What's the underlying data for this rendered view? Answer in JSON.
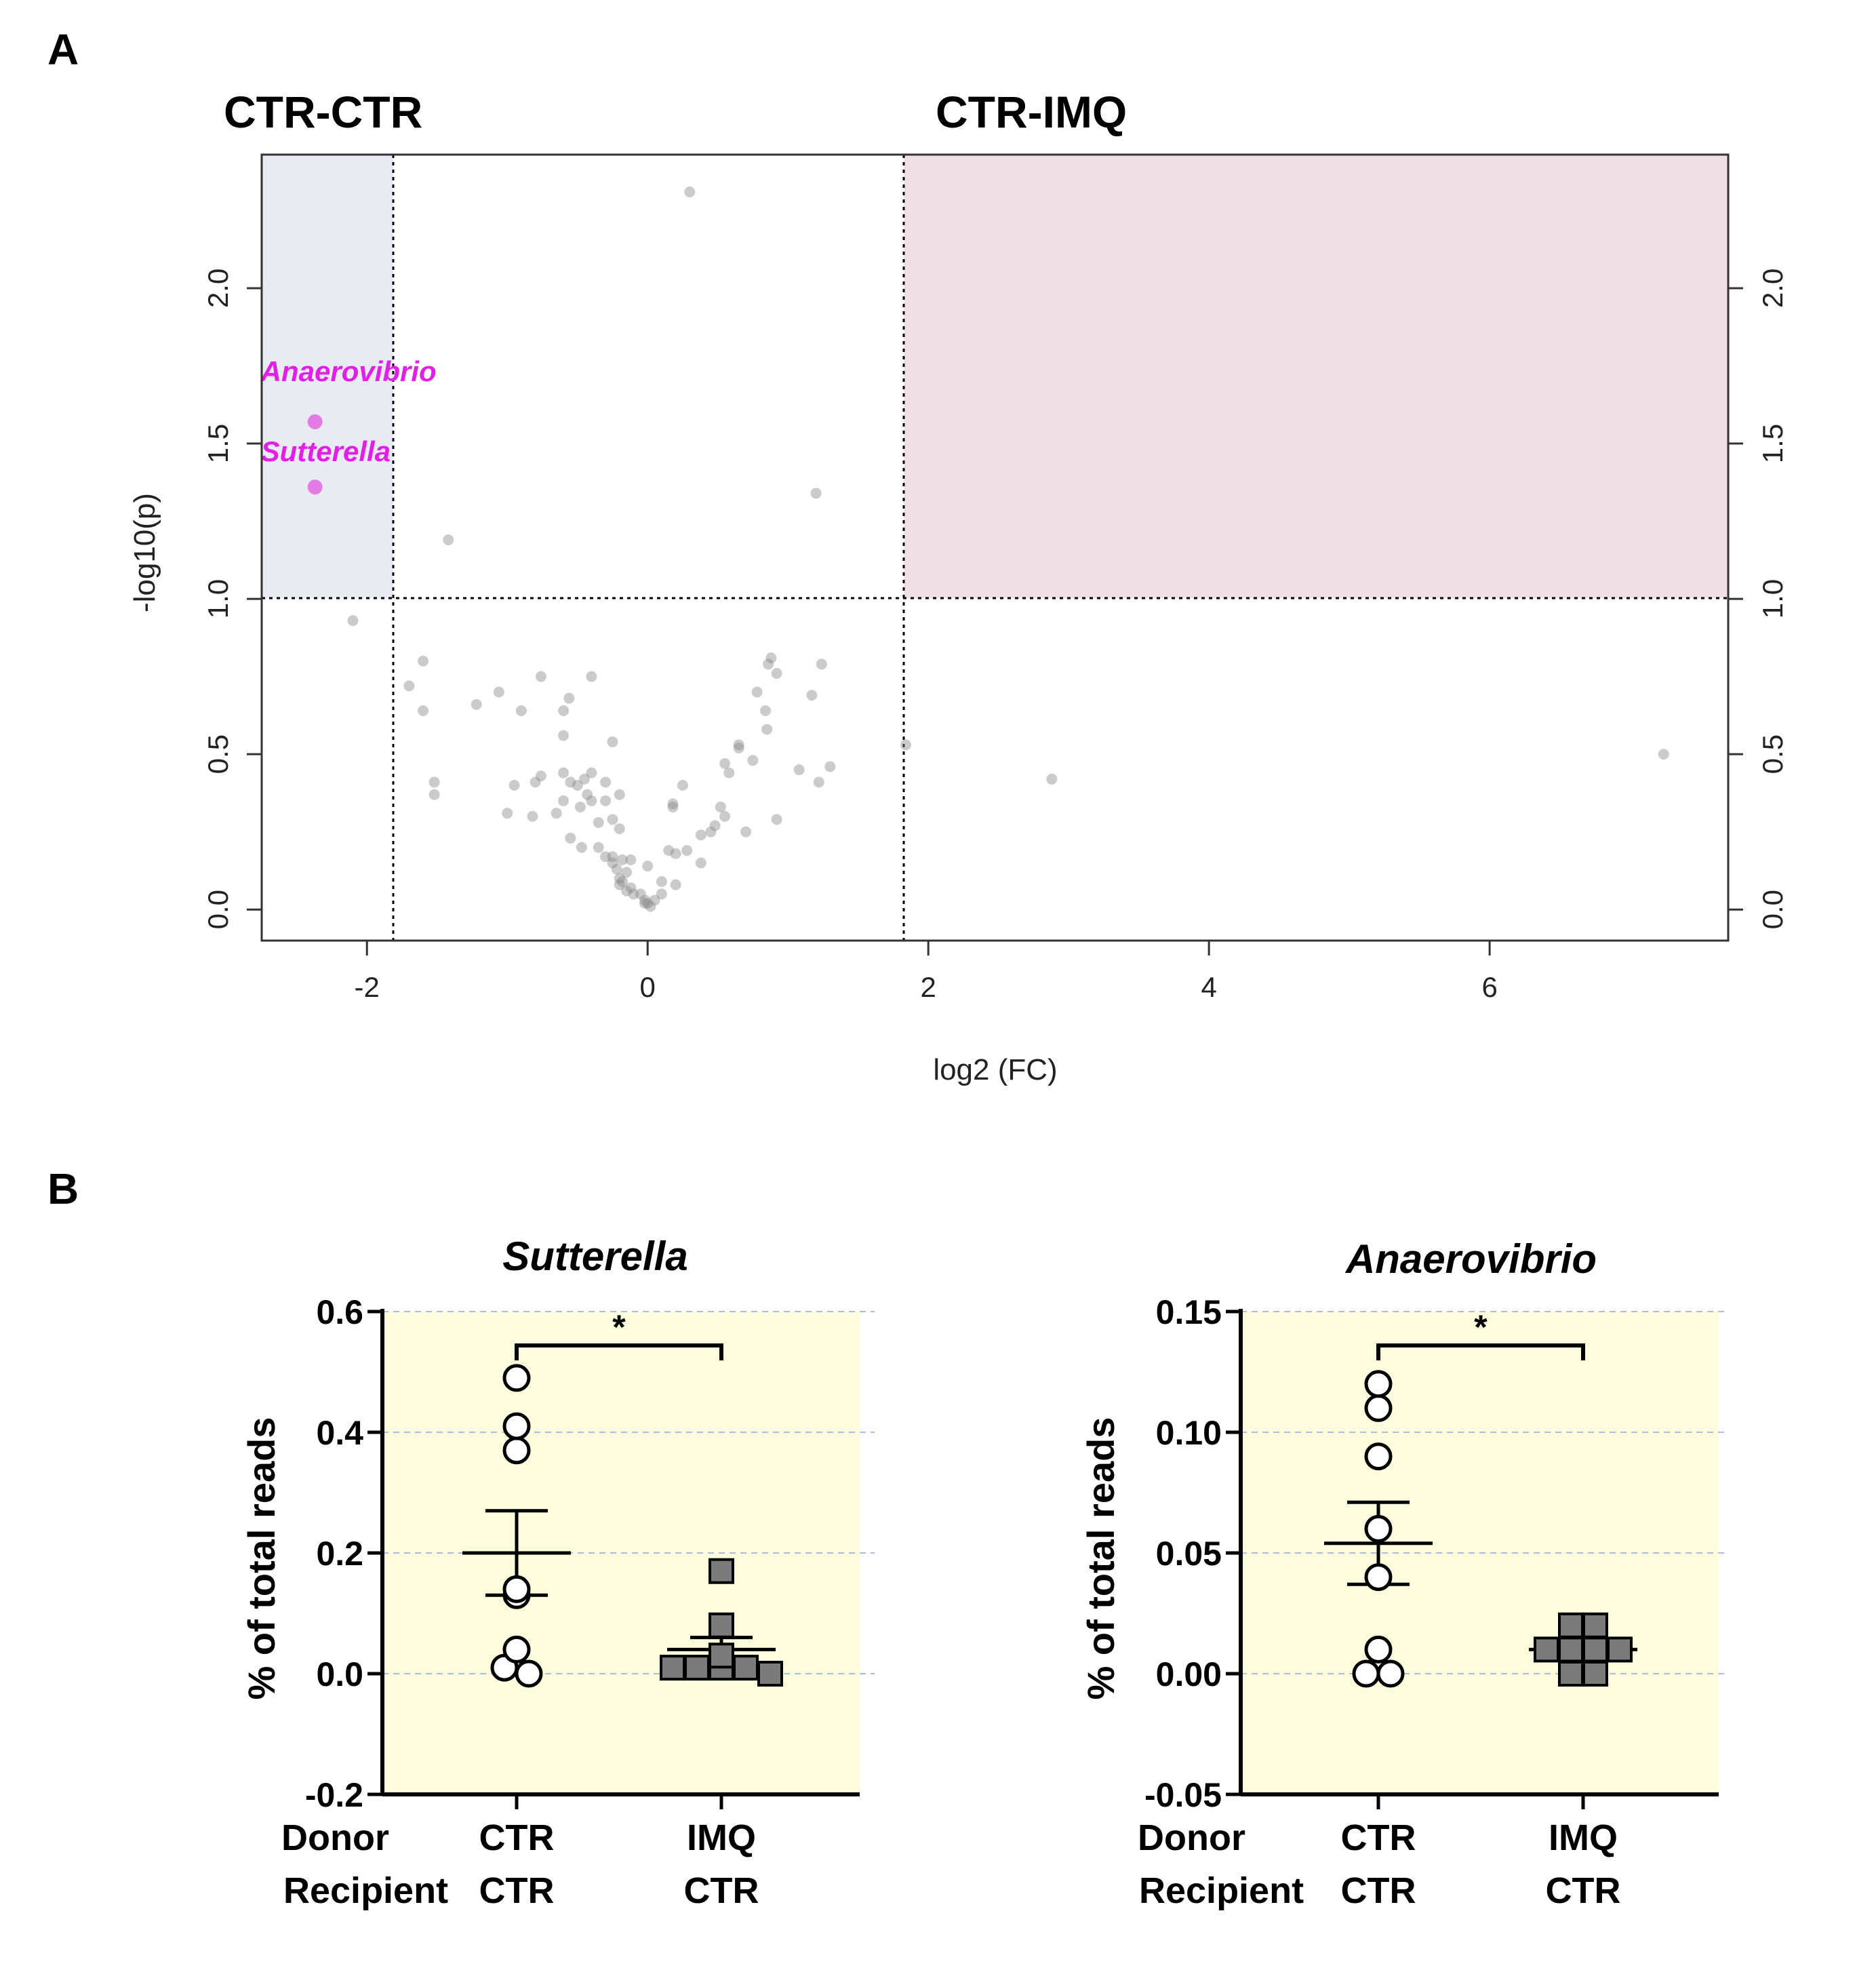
{
  "panel_a": {
    "letter": "A",
    "left_region_title": "CTR-CTR",
    "right_region_title": "CTR-IMQ"
  },
  "panel_b": {
    "letter": "B",
    "row_labels": [
      "Donor",
      "Recipient"
    ]
  },
  "colors": {
    "left_region": "#e8ecf2",
    "right_region": "#f0e1e6",
    "highlight_point": "#e27be4",
    "highlight_label": "#e11fe6",
    "gray_point": "#8c8c8c",
    "plot_b_background": "#fdfdde",
    "gridline_b": "#aabbee",
    "square_fill": "#7a7a7a"
  },
  "chart_data": [
    {
      "type": "scatter",
      "subtype": "volcano",
      "title": "",
      "xlabel": "log2 (FC)",
      "ylabel": "-log10(p)",
      "xlim": [
        -2.75,
        7.7
      ],
      "ylim": [
        -0.1,
        2.43
      ],
      "x_ticks": [
        -2,
        0,
        2,
        4,
        6
      ],
      "x_tick_labels": [
        "-2",
        "0",
        "2",
        "4",
        "6"
      ],
      "y_ticks": [
        0.0,
        0.5,
        1.0,
        1.5,
        2.0
      ],
      "y_tick_labels": [
        "0.0",
        "0.5",
        "1.0",
        "1.5",
        "2.0"
      ],
      "thresholds": {
        "log2fc_low": -1.83,
        "log2fc_high": 1.83,
        "neg_log10_p": 1.0
      },
      "highlighted": [
        {
          "label": "Anaerovibrio",
          "x": -2.37,
          "y": 1.57
        },
        {
          "label": "Sutterella",
          "x": -2.37,
          "y": 1.36
        }
      ],
      "points": [
        [
          0.3,
          2.31
        ],
        [
          1.2,
          1.34
        ],
        [
          -1.42,
          1.19
        ],
        [
          -2.1,
          0.93
        ],
        [
          0.88,
          0.81
        ],
        [
          0.86,
          0.79
        ],
        [
          0.92,
          0.76
        ],
        [
          1.24,
          0.79
        ],
        [
          1.17,
          0.69
        ],
        [
          -1.6,
          0.8
        ],
        [
          -1.7,
          0.72
        ],
        [
          -1.6,
          0.64
        ],
        [
          -1.22,
          0.66
        ],
        [
          -1.06,
          0.7
        ],
        [
          -0.9,
          0.64
        ],
        [
          -0.76,
          0.75
        ],
        [
          -0.4,
          0.75
        ],
        [
          -0.6,
          0.64
        ],
        [
          -0.56,
          0.68
        ],
        [
          -0.6,
          0.56
        ],
        [
          -0.25,
          0.54
        ],
        [
          0.78,
          0.7
        ],
        [
          0.84,
          0.64
        ],
        [
          0.85,
          0.58
        ],
        [
          0.65,
          0.53
        ],
        [
          0.65,
          0.52
        ],
        [
          0.75,
          0.48
        ],
        [
          1.08,
          0.45
        ],
        [
          1.22,
          0.41
        ],
        [
          1.3,
          0.46
        ],
        [
          0.55,
          0.47
        ],
        [
          0.58,
          0.44
        ],
        [
          1.84,
          0.53
        ],
        [
          2.88,
          0.42
        ],
        [
          7.24,
          0.5
        ],
        [
          -1.52,
          0.41
        ],
        [
          -1.52,
          0.37
        ],
        [
          -0.95,
          0.4
        ],
        [
          -0.8,
          0.41
        ],
        [
          -0.76,
          0.43
        ],
        [
          -0.6,
          0.44
        ],
        [
          -0.55,
          0.41
        ],
        [
          -0.5,
          0.4
        ],
        [
          -0.45,
          0.42
        ],
        [
          -0.4,
          0.44
        ],
        [
          -0.3,
          0.41
        ],
        [
          -0.2,
          0.37
        ],
        [
          -0.43,
          0.37
        ],
        [
          -0.4,
          0.35
        ],
        [
          -0.48,
          0.33
        ],
        [
          -0.6,
          0.35
        ],
        [
          -1.0,
          0.31
        ],
        [
          -0.82,
          0.3
        ],
        [
          -0.65,
          0.31
        ],
        [
          -0.25,
          0.29
        ],
        [
          -0.2,
          0.26
        ],
        [
          -0.55,
          0.23
        ],
        [
          -0.47,
          0.2
        ],
        [
          -0.35,
          0.2
        ],
        [
          -0.3,
          0.17
        ],
        [
          -0.25,
          0.15
        ],
        [
          -0.22,
          0.13
        ],
        [
          -0.18,
          0.16
        ],
        [
          -0.15,
          0.12
        ],
        [
          -0.2,
          0.1
        ],
        [
          -0.18,
          0.09
        ],
        [
          -0.2,
          0.08
        ],
        [
          -0.15,
          0.06
        ],
        [
          -0.12,
          0.07
        ],
        [
          -0.1,
          0.05
        ],
        [
          -0.05,
          0.05
        ],
        [
          0.0,
          0.02
        ],
        [
          0.02,
          0.01
        ],
        [
          -0.02,
          0.03
        ],
        [
          0.05,
          0.03
        ],
        [
          0.1,
          0.05
        ],
        [
          0.1,
          0.09
        ],
        [
          0.2,
          0.08
        ],
        [
          0.15,
          0.19
        ],
        [
          0.2,
          0.18
        ],
        [
          0.28,
          0.19
        ],
        [
          0.38,
          0.15
        ],
        [
          0.38,
          0.24
        ],
        [
          0.45,
          0.25
        ],
        [
          0.48,
          0.27
        ],
        [
          0.55,
          0.3
        ],
        [
          0.52,
          0.33
        ],
        [
          0.7,
          0.25
        ],
        [
          0.92,
          0.29
        ],
        [
          0.18,
          0.33
        ],
        [
          0.18,
          0.34
        ],
        [
          0.25,
          0.4
        ],
        [
          -0.3,
          0.35
        ],
        [
          -0.12,
          0.16
        ],
        [
          0.0,
          0.14
        ],
        [
          -0.25,
          0.17
        ],
        [
          -0.35,
          0.28
        ],
        [
          -0.02,
          0.02
        ]
      ]
    },
    {
      "type": "scatter",
      "subtype": "dot-plot-with-mean-sem",
      "title": "Sutterella",
      "ylabel": "% of total reads",
      "ylim": [
        -0.2,
        0.6
      ],
      "y_ticks": [
        -0.2,
        0.0,
        0.2,
        0.4,
        0.6
      ],
      "y_tick_labels": [
        "-0.2",
        "0.0",
        "0.2",
        "0.4",
        "0.6"
      ],
      "grid": true,
      "significance": "*",
      "groups": [
        {
          "donor": "CTR",
          "recipient": "CTR",
          "marker": "open-circle",
          "values": [
            0.49,
            0.41,
            0.37,
            0.14,
            0.13,
            0.04,
            0.01,
            0.0
          ],
          "mean": 0.2,
          "sem_low": 0.13,
          "sem_high": 0.27
        },
        {
          "donor": "IMQ",
          "recipient": "CTR",
          "marker": "filled-square",
          "values": [
            0.17,
            0.08,
            0.03,
            0.01,
            0.01,
            0.01,
            0.01,
            0.0
          ],
          "mean": 0.04,
          "sem_low": 0.02,
          "sem_high": 0.06
        }
      ]
    },
    {
      "type": "scatter",
      "subtype": "dot-plot-with-mean-sem",
      "title": "Anaerovibrio",
      "ylabel": "% of total reads",
      "ylim": [
        -0.05,
        0.15
      ],
      "y_ticks": [
        -0.05,
        0.0,
        0.05,
        0.1,
        0.15
      ],
      "y_tick_labels": [
        "-0.05",
        "0.00",
        "0.05",
        "0.10",
        "0.15"
      ],
      "grid": true,
      "significance": "*",
      "groups": [
        {
          "donor": "CTR",
          "recipient": "CTR",
          "marker": "open-circle",
          "values": [
            0.12,
            0.11,
            0.09,
            0.06,
            0.04,
            0.01,
            0.0,
            0.0
          ],
          "mean": 0.054,
          "sem_low": 0.037,
          "sem_high": 0.071
        },
        {
          "donor": "IMQ",
          "recipient": "CTR",
          "marker": "filled-square",
          "values": [
            0.02,
            0.02,
            0.01,
            0.01,
            0.01,
            0.01,
            0.0,
            0.0
          ],
          "mean": 0.01,
          "sem_low": 0.006,
          "sem_high": 0.014
        }
      ]
    }
  ]
}
